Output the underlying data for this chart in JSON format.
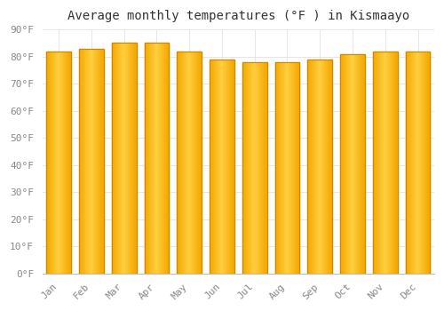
{
  "months": [
    "Jan",
    "Feb",
    "Mar",
    "Apr",
    "May",
    "Jun",
    "Jul",
    "Aug",
    "Sep",
    "Oct",
    "Nov",
    "Dec"
  ],
  "values": [
    82,
    83,
    85,
    85,
    82,
    79,
    78,
    78,
    79,
    81,
    82,
    82
  ],
  "bar_color_left": "#F5A800",
  "bar_color_center": "#FFD040",
  "bar_color_right": "#F5A800",
  "bar_edge_color": "#CC8800",
  "title": "Average monthly temperatures (°F ) in Kismaayo",
  "ylim": [
    0,
    90
  ],
  "background_color": "#FFFFFF",
  "grid_color": "#E0E0E8",
  "title_fontsize": 10,
  "tick_fontsize": 8,
  "tick_color": "#888888",
  "font_family": "monospace"
}
